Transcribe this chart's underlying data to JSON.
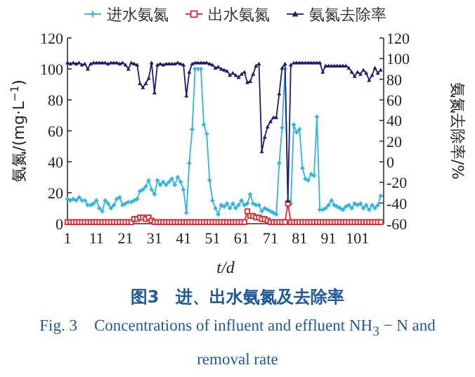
{
  "chart_data": {
    "type": "line",
    "title": "图3　进、出水氨氮及去除率",
    "subtitle": "Fig. 3　Concentrations of influent and effluent NH$_{3}$ − N and removal rate",
    "xlabel": "t/d",
    "ylabel": "氨氮/(mg·L$^{−1}$)",
    "y2label": "氨氮去除率/%",
    "xlim": [
      1,
      110
    ],
    "xticks": [
      1,
      11,
      21,
      31,
      41,
      51,
      61,
      71,
      81,
      91,
      101
    ],
    "ylim": [
      0,
      120
    ],
    "yticks": [
      0,
      20,
      40,
      60,
      80,
      100,
      120
    ],
    "y2lim": [
      -60,
      120
    ],
    "y2ticks": [
      -60,
      -40,
      -20,
      0,
      20,
      40,
      60,
      80,
      100,
      120
    ],
    "legend": "top",
    "grid": false,
    "line_style": "solid",
    "x": [
      1,
      2,
      3,
      4,
      5,
      6,
      7,
      8,
      9,
      10,
      11,
      12,
      13,
      14,
      15,
      16,
      17,
      18,
      19,
      20,
      21,
      22,
      23,
      24,
      25,
      26,
      27,
      28,
      29,
      30,
      31,
      32,
      33,
      34,
      35,
      36,
      37,
      38,
      39,
      40,
      41,
      42,
      43,
      44,
      45,
      46,
      47,
      48,
      49,
      50,
      51,
      52,
      53,
      54,
      55,
      56,
      57,
      58,
      59,
      60,
      61,
      62,
      63,
      64,
      65,
      66,
      67,
      68,
      69,
      70,
      71,
      72,
      73,
      74,
      75,
      76,
      77,
      78,
      79,
      80,
      81,
      82,
      83,
      84,
      85,
      86,
      87,
      88,
      89,
      90,
      91,
      92,
      93,
      94,
      95,
      96,
      97,
      98,
      99,
      100,
      101,
      102,
      103,
      104,
      105,
      106,
      107,
      108,
      109
    ],
    "series": [
      {
        "name": "进水氨氮",
        "color": "#2fb4e0",
        "marker": "cross",
        "values": [
          16,
          15,
          16,
          15,
          17,
          15,
          15,
          12,
          12,
          13,
          15,
          10,
          8,
          15,
          13,
          10,
          12,
          16,
          17,
          12,
          13,
          14,
          14,
          15,
          16,
          21,
          22,
          24,
          28,
          22,
          19,
          28,
          25,
          27,
          25,
          27,
          29,
          25,
          30,
          27,
          22,
          7,
          39,
          61,
          100,
          100,
          100,
          64,
          58,
          28,
          15,
          10,
          6,
          12,
          11,
          13,
          10,
          13,
          10,
          12,
          15,
          12,
          13,
          19,
          13,
          12,
          12,
          8,
          10,
          9,
          8,
          7,
          6,
          39,
          62,
          100,
          15,
          13,
          64,
          59,
          61,
          36,
          29,
          28,
          32,
          31,
          69,
          9,
          9,
          10,
          12,
          15,
          12,
          11,
          10,
          9,
          11,
          12,
          10,
          13,
          12,
          13,
          10,
          12,
          9,
          12,
          10,
          12,
          18
        ]
      },
      {
        "name": "出水氨氮",
        "color": "#d9282f",
        "marker": "square",
        "values": [
          1,
          1,
          1,
          1,
          1,
          1,
          1,
          1,
          1,
          1,
          1,
          1,
          1,
          1,
          1,
          1,
          1,
          1,
          1,
          1,
          1,
          1,
          1,
          3,
          3,
          4,
          4,
          3,
          4,
          2,
          1,
          1,
          1,
          1,
          1,
          1,
          1,
          1,
          1,
          1,
          1,
          1,
          1,
          1,
          1,
          1,
          1,
          1,
          1,
          1,
          1,
          1,
          1,
          1,
          1,
          1,
          1,
          1,
          1,
          1,
          1,
          1,
          8,
          5,
          5,
          4,
          4,
          3,
          3,
          2,
          1,
          1,
          1,
          1,
          1,
          1,
          13,
          1,
          1,
          1,
          1,
          1,
          1,
          1,
          1,
          1,
          1,
          1,
          1,
          1,
          1,
          1,
          1,
          1,
          1,
          1,
          1,
          1,
          1,
          1,
          1,
          1,
          1,
          1,
          1,
          1,
          1,
          1,
          1
        ]
      },
      {
        "name": "氨氮去除率",
        "color": "#1c1f6e",
        "marker": "triangle",
        "axis": "y2",
        "values": [
          96,
          95,
          96,
          95,
          96,
          94,
          95,
          90,
          95,
          96,
          96,
          96,
          96,
          96,
          95,
          96,
          96,
          96,
          95,
          96,
          94,
          90,
          96,
          95,
          94,
          76,
          72,
          76,
          81,
          96,
          67,
          94,
          95,
          94,
          95,
          95,
          95,
          95,
          96,
          95,
          94,
          64,
          87,
          95,
          96,
          96,
          96,
          96,
          96,
          95,
          94,
          91,
          92,
          90,
          89,
          88,
          84,
          86,
          84,
          82,
          85,
          87,
          77,
          78,
          85,
          93,
          95,
          10,
          24,
          34,
          39,
          43,
          43,
          66,
          91,
          95,
          -38,
          94,
          96,
          96,
          96,
          96,
          96,
          96,
          96,
          96,
          96,
          96,
          87,
          93,
          93,
          93,
          93,
          93,
          93,
          93,
          93,
          91,
          87,
          83,
          87,
          85,
          89,
          86,
          79,
          84,
          91,
          86,
          89
        ]
      }
    ]
  }
}
